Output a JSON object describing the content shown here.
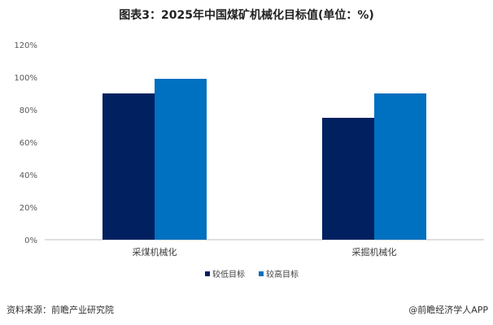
{
  "chart_data": {
    "type": "bar",
    "title": "图表3：2025年中国煤矿机械化目标值(单位：%)",
    "categories": [
      "采煤机械化",
      "采掘机械化"
    ],
    "series": [
      {
        "name": "较低目标",
        "values": [
          90,
          75
        ],
        "color": "#002060"
      },
      {
        "name": "较高目标",
        "values": [
          99,
          90
        ],
        "color": "#0070C0"
      }
    ],
    "ylim": [
      0,
      120
    ],
    "yticks": [
      "0%",
      "20%",
      "40%",
      "60%",
      "80%",
      "100%",
      "120%"
    ],
    "xlabel": "",
    "ylabel": "",
    "grid": false,
    "legend": "bottom-center"
  },
  "footer": {
    "source": "资料来源：前瞻产业研究院",
    "credit": "@前瞻经济学人APP"
  }
}
